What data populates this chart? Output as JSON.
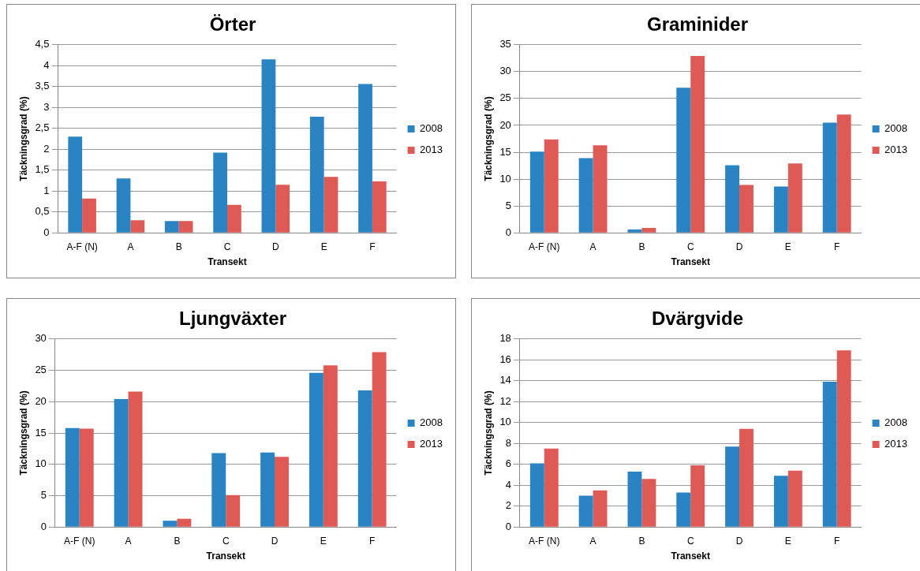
{
  "chart_data": [
    {
      "type": "bar",
      "title": "Örter",
      "xlabel": "Transekt",
      "ylabel": "Täckningsgrad (%)",
      "categories": [
        "A-F (N)",
        "A",
        "B",
        "C",
        "D",
        "E",
        "F"
      ],
      "series": [
        {
          "name": "2008",
          "color": "#2a84c4",
          "values": [
            2.3,
            1.3,
            0.28,
            1.92,
            4.15,
            2.78,
            3.56
          ]
        },
        {
          "name": "2013",
          "color": "#e05a55",
          "values": [
            0.82,
            0.3,
            0.28,
            0.67,
            1.15,
            1.34,
            1.23
          ]
        }
      ],
      "ylim": [
        0,
        4.5
      ],
      "yticks": [
        0,
        {
          "value": 0.5,
          "label": "0,5"
        },
        1,
        {
          "value": 1.5,
          "label": "1,5"
        },
        2,
        {
          "value": 2.5,
          "label": "2,5"
        },
        3,
        {
          "value": 3.5,
          "label": "3,5"
        },
        4,
        {
          "value": 4.5,
          "label": "4,5"
        }
      ],
      "grid": "y",
      "legend": "right"
    },
    {
      "type": "bar",
      "title": "Graminider",
      "xlabel": "Transekt",
      "ylabel": "Täckningsgrad (%)",
      "categories": [
        "A-F (N)",
        "A",
        "B",
        "C",
        "D",
        "E",
        "F"
      ],
      "series": [
        {
          "name": "2008",
          "color": "#2a84c4",
          "values": [
            15.1,
            13.9,
            0.6,
            27,
            12.6,
            8.6,
            20.5
          ]
        },
        {
          "name": "2013",
          "color": "#e05a55",
          "values": [
            17.4,
            16.3,
            0.9,
            32.9,
            8.9,
            12.9,
            22
          ]
        }
      ],
      "ylim": [
        0,
        35
      ],
      "yticks": [
        0,
        5,
        10,
        15,
        20,
        25,
        30,
        35
      ],
      "grid": "y",
      "legend": "right"
    },
    {
      "type": "bar",
      "title": "Ljungväxter",
      "xlabel": "Transekt",
      "ylabel": "Täckningsgrad (%)",
      "categories": [
        "A-F (N)",
        "A",
        "B",
        "C",
        "D",
        "E",
        "F"
      ],
      "series": [
        {
          "name": "2008",
          "color": "#2a84c4",
          "values": [
            15.8,
            20.4,
            1.0,
            11.8,
            11.9,
            24.6,
            21.8
          ]
        },
        {
          "name": "2013",
          "color": "#e05a55",
          "values": [
            15.7,
            21.6,
            1.3,
            5.1,
            11.2,
            25.8,
            27.9
          ]
        }
      ],
      "ylim": [
        0,
        30
      ],
      "yticks": [
        0,
        5,
        10,
        15,
        20,
        25,
        30
      ],
      "grid": "y",
      "legend": "right"
    },
    {
      "type": "bar",
      "title": "Dvärgvide",
      "xlabel": "Transekt",
      "ylabel": "Täckningsgrad (%)",
      "categories": [
        "A-F (N)",
        "A",
        "B",
        "C",
        "D",
        "E",
        "F"
      ],
      "series": [
        {
          "name": "2008",
          "color": "#2a84c4",
          "values": [
            6.1,
            3.0,
            5.3,
            3.3,
            7.7,
            4.9,
            13.9
          ]
        },
        {
          "name": "2013",
          "color": "#e05a55",
          "values": [
            7.5,
            3.5,
            4.6,
            5.9,
            9.4,
            5.4,
            16.9
          ]
        }
      ],
      "ylim": [
        0,
        18
      ],
      "yticks": [
        0,
        2,
        4,
        6,
        8,
        10,
        12,
        14,
        16,
        18
      ],
      "grid": "y",
      "legend": "right"
    }
  ]
}
